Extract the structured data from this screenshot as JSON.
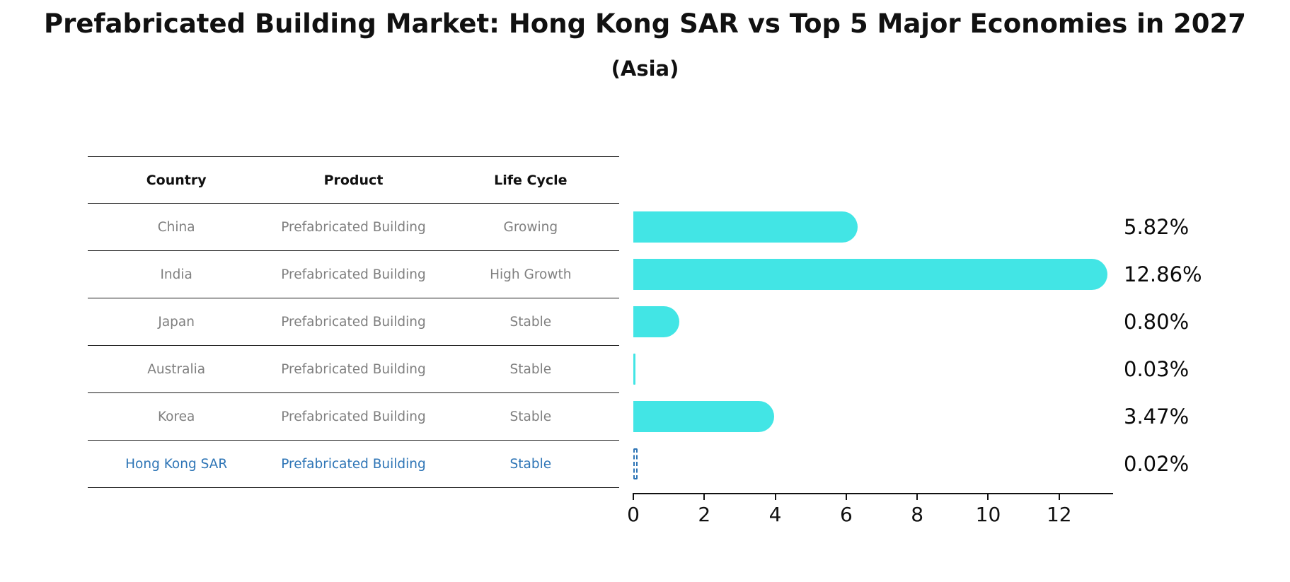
{
  "header": {
    "title": "Prefabricated Building Market: Hong Kong SAR vs Top 5 Major Economies in 2027",
    "subtitle": "(Asia)"
  },
  "table": {
    "columns": [
      "Country",
      "Product",
      "Life Cycle"
    ],
    "rows": [
      {
        "country": "China",
        "product": "Prefabricated Building",
        "life_cycle": "Growing",
        "highlight": false
      },
      {
        "country": "India",
        "product": "Prefabricated Building",
        "life_cycle": "High Growth",
        "highlight": false
      },
      {
        "country": "Japan",
        "product": "Prefabricated Building",
        "life_cycle": "Stable",
        "highlight": false
      },
      {
        "country": "Australia",
        "product": "Prefabricated Building",
        "life_cycle": "Stable",
        "highlight": false
      },
      {
        "country": "Korea",
        "product": "Prefabricated Building",
        "life_cycle": "Stable",
        "highlight": false
      },
      {
        "country": "Hong Kong SAR",
        "product": "Prefabricated Building",
        "life_cycle": "Stable",
        "highlight": true
      }
    ]
  },
  "chart_data": {
    "type": "bar",
    "orientation": "horizontal",
    "title": "Prefabricated Building Market: Hong Kong SAR vs Top 5 Major Economies in 2027 (Asia)",
    "categories": [
      "China",
      "India",
      "Japan",
      "Australia",
      "Korea",
      "Hong Kong SAR"
    ],
    "values": [
      5.82,
      12.86,
      0.8,
      0.03,
      3.47,
      0.02
    ],
    "value_labels": [
      "5.82%",
      "12.86%",
      "0.80%",
      "0.03%",
      "3.47%",
      "0.02%"
    ],
    "x_ticks": [
      0,
      2,
      4,
      6,
      8,
      10,
      12
    ],
    "xlim": [
      0,
      13.5
    ],
    "xlabel": "",
    "ylabel": "",
    "grid": false,
    "legend": false,
    "bar_color": "#42E5E5",
    "highlight_index": 5,
    "highlight_style": "dashed-outline",
    "highlight_color": "#2E75B6"
  },
  "colors": {
    "background": "#ffffff",
    "bar": "#42E5E5",
    "highlight": "#2E75B6",
    "text_muted": "#7f7f7f",
    "axis": "#111111"
  }
}
